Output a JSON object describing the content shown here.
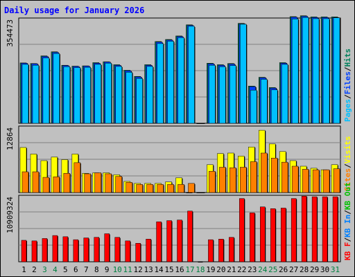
{
  "chart_data": {
    "type": "bar",
    "title": "Daily usage for January 2026",
    "x": [
      "1",
      "2",
      "3",
      "4",
      "5",
      "6",
      "7",
      "8",
      "9",
      "10",
      "11",
      "12",
      "13",
      "14",
      "15",
      "16",
      "17",
      "18",
      "19",
      "20",
      "21",
      "22",
      "23",
      "24",
      "25",
      "26",
      "27",
      "28",
      "29",
      "30",
      "31"
    ],
    "weekend_days": [
      3,
      4,
      10,
      11,
      17,
      18,
      24,
      25,
      31
    ],
    "colors": {
      "hits": "#00805c",
      "files": "#0040ff",
      "pages": "#00c0ff",
      "visits": "#ffff00",
      "sites": "#ff8000",
      "kbin": "#0080ff",
      "kbout": "#00c000",
      "kbf": "#ff0000",
      "weekday": "#000000",
      "weekend": "#008040",
      "title": "#0000ff"
    },
    "panels": [
      {
        "id": "hits-panel",
        "ymax_label": "354473",
        "ymax": 354473,
        "legend": [
          "Pages",
          "/",
          "Files",
          "/",
          "Hits"
        ],
        "legend_colors": [
          "#00c0ff",
          "#000000",
          "#0040ff",
          "#000000",
          "#00805c"
        ],
        "series": [
          {
            "name": "Hits",
            "values": [
              206000,
              204000,
              230000,
              244000,
              198000,
              195000,
              196000,
              207000,
              210000,
              200000,
              181000,
              160000,
              200000,
              279000,
              286000,
              298000,
              336000,
              0,
              205000,
              200000,
              204000,
              341000,
              127000,
              157000,
              122000,
              207000,
              364000,
              367000,
              363000,
              363000,
              363000
            ]
          },
          {
            "name": "Files",
            "values": [
              205000,
              203000,
              228000,
              242000,
              197000,
              194000,
              195000,
              205000,
              209000,
              198000,
              179000,
              158000,
              198000,
              277000,
              284000,
              296000,
              334000,
              0,
              203000,
              198000,
              202000,
              339000,
              125000,
              155000,
              120000,
              205000,
              362000,
              365000,
              361000,
              361000,
              361000
            ]
          },
          {
            "name": "Pages",
            "values": [
              201000,
              198000,
              223000,
              238000,
              193000,
              190000,
              191000,
              201000,
              205000,
              194000,
              174000,
              153000,
              194000,
              272000,
              280000,
              292000,
              331000,
              0,
              198000,
              193000,
              197000,
              338000,
              113000,
              150000,
              114000,
              201000,
              356000,
              361000,
              357000,
              357000,
              360000
            ]
          }
        ]
      },
      {
        "id": "visits-panel",
        "ymax_label": "12864",
        "ymax": 12864,
        "legend": [
          "Sites",
          "/",
          "Visits"
        ],
        "legend_colors": [
          "#ff8000",
          "#000000",
          "#ffff00"
        ],
        "series": [
          {
            "name": "Visits",
            "values": [
              8900,
              7600,
              6300,
              7000,
              6500,
              7600,
              3800,
              3900,
              3900,
              3500,
              2200,
              1800,
              1800,
              1800,
              2100,
              2900,
              0,
              0,
              5500,
              7700,
              7800,
              7200,
              9000,
              12300,
              9600,
              8100,
              6300,
              5200,
              4800,
              4500,
              5500
            ]
          },
          {
            "name": "Sites",
            "values": [
              4100,
              4100,
              3000,
              3100,
              3800,
              5900,
              3700,
              3900,
              3700,
              3200,
              2000,
              1600,
              1600,
              1600,
              1600,
              1600,
              1800,
              0,
              4200,
              5000,
              4900,
              5000,
              6100,
              7800,
              6800,
              6000,
              5200,
              4600,
              4500,
              4500,
              4700
            ]
          }
        ]
      },
      {
        "id": "kbytes-panel",
        "ymax_label": "10909324",
        "ymax": 10909324,
        "legend": [
          "KB F",
          "/",
          "KB In",
          "/",
          "KB Out"
        ],
        "legend_colors": [
          "#ff0000",
          "#000000",
          "#0080ff",
          "#000000",
          "#00c000"
        ],
        "series": [
          {
            "name": "KB F",
            "values": [
              3600000,
              3500000,
              3900000,
              4400000,
              4200000,
              3700000,
              4000000,
              4100000,
              4700000,
              4100000,
              3500000,
              3100000,
              3800000,
              6700000,
              6900000,
              7000000,
              8500000,
              0,
              3700000,
              3800000,
              4100000,
              10600000,
              8200000,
              9200000,
              8900000,
              9000000,
              10600000,
              11000000,
              10900000,
              10900000,
              10900000
            ]
          }
        ]
      }
    ]
  }
}
